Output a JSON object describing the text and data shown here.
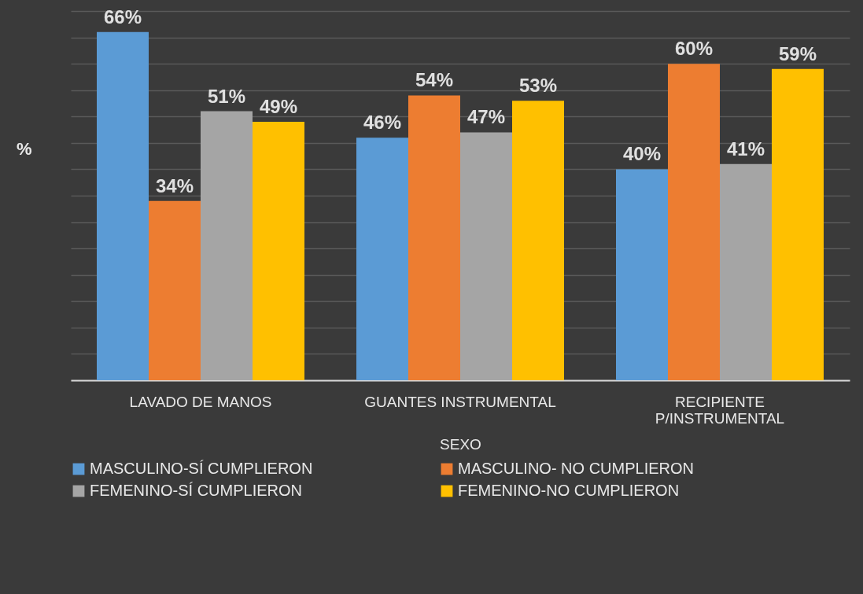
{
  "chart_data": {
    "type": "bar",
    "xlabel": "SEXO",
    "ylabel": "%",
    "categories": [
      "LAVADO DE MANOS",
      "GUANTES INSTRUMENTAL",
      "RECIPIENTE P/INSTRUMENTAL"
    ],
    "series": [
      {
        "name": "MASCULINO-SÍ CUMPLIERON",
        "color": "#5b9bd5",
        "values": [
          66,
          46,
          40
        ],
        "value_labels": [
          "66%",
          "46%",
          "40%"
        ]
      },
      {
        "name": "MASCULINO- NO CUMPLIERON",
        "color": "#ed7d31",
        "values": [
          34,
          54,
          60
        ],
        "value_labels": [
          "34%",
          "54%",
          "60%"
        ]
      },
      {
        "name": "FEMENINO-SÍ CUMPLIERON",
        "color": "#a5a5a5",
        "values": [
          51,
          47,
          41
        ],
        "value_labels": [
          "51%",
          "47%",
          "41%"
        ]
      },
      {
        "name": "FEMENINO-NO CUMPLIERON",
        "color": "#ffc000",
        "values": [
          49,
          53,
          59
        ],
        "value_labels": [
          "49%",
          "53%",
          "59%"
        ]
      }
    ],
    "grid": "y",
    "tick_labels": "x",
    "legend": "bottom"
  }
}
